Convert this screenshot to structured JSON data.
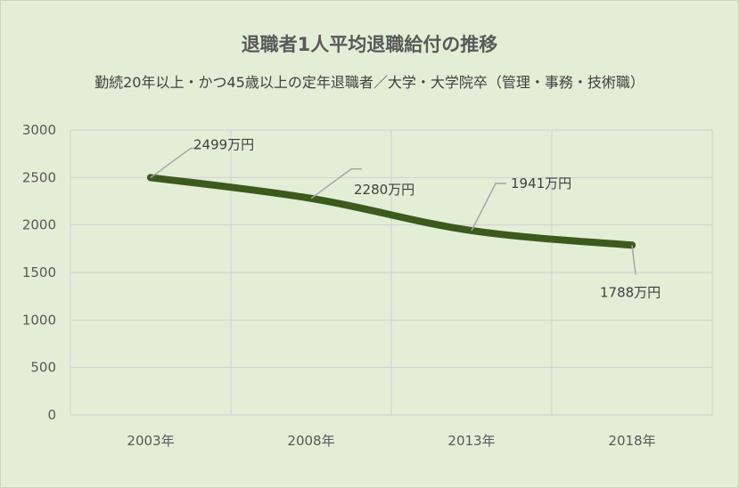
{
  "chart_data": {
    "type": "line",
    "title": "退職者1人平均退職給付の推移",
    "subtitle": "勤続20年以上・かつ45歳以上の定年退職者／大学・大学院卒（管理・事務・技術職）",
    "categories": [
      "2003年",
      "2008年",
      "2013年",
      "2018年"
    ],
    "series": [
      {
        "values": [
          2499,
          2280,
          1941,
          1788
        ]
      }
    ],
    "data_labels": [
      "2499万円",
      "2280万円",
      "1941万円",
      "1788万円"
    ],
    "ylim": [
      0,
      3000
    ],
    "yticks": [
      "0",
      "500",
      "1000",
      "1500",
      "2000",
      "2500",
      "3000"
    ],
    "grid": true,
    "xlabel": "",
    "ylabel": "",
    "colors": {
      "line": "#3c5a1e",
      "grid": "#d2d2d2",
      "background": "#e3eed6",
      "leader": "#a6a6a6"
    }
  }
}
